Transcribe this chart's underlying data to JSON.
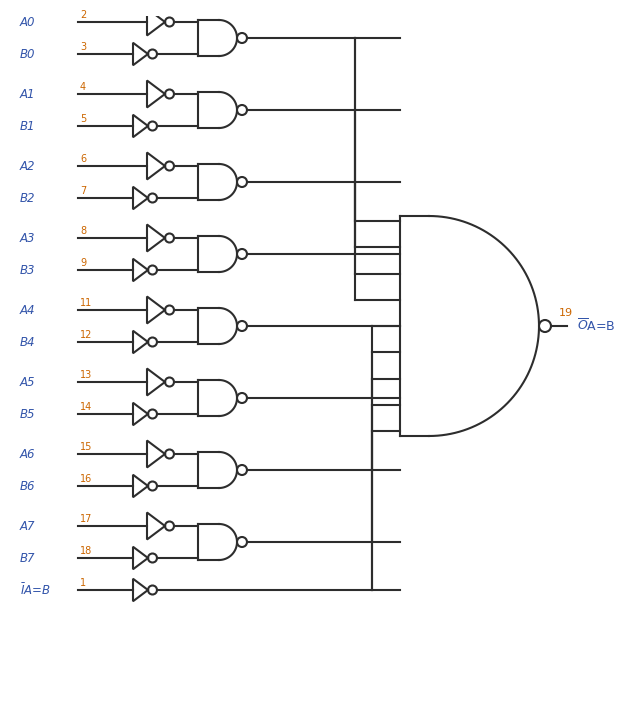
{
  "bg_color": "#ffffff",
  "line_color": "#2d2d2d",
  "color_label": "#3355aa",
  "color_pin": "#cc6600",
  "rows": [
    {
      "A": "A0",
      "B": "B0",
      "pinA": "2",
      "pinB": "3"
    },
    {
      "A": "A1",
      "B": "B1",
      "pinA": "4",
      "pinB": "5"
    },
    {
      "A": "A2",
      "B": "B2",
      "pinA": "6",
      "pinB": "7"
    },
    {
      "A": "A3",
      "B": "B3",
      "pinA": "8",
      "pinB": "9"
    },
    {
      "A": "A4",
      "B": "B4",
      "pinA": "11",
      "pinB": "12"
    },
    {
      "A": "A5",
      "B": "B5",
      "pinA": "13",
      "pinB": "14"
    },
    {
      "A": "A6",
      "B": "B6",
      "pinA": "15",
      "pinB": "16"
    },
    {
      "A": "A7",
      "B": "B7",
      "pinA": "17",
      "pinB": "18"
    }
  ],
  "final_pin": "19",
  "final_label": "OA=B",
  "ia_pin": "1",
  "ia_label": "IA=B"
}
